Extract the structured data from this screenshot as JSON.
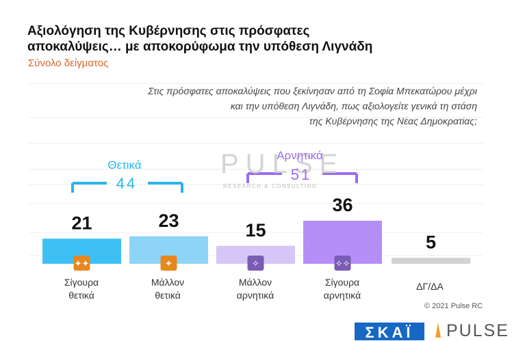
{
  "title": "Αξιολόγηση της Κυβέρνησης στις πρόσφατες\nαποκαλύψεις… με αποκορύφωμα την υπόθεση Λιγνάδη",
  "subtitle": "Σύνολο δείγματος",
  "question": "Στις πρόσφατες αποκαλύψεις που ξεκίνησαν από τη Σοφία Μπεκατώρου μέχρι\nκαι την υπόθεση Λιγνάδη, πως αξιολογείτε γενικά τη στάση\nτης Κυβέρνησης της Νέας Δημοκρατίας;",
  "watermark": {
    "main": "PULSE",
    "sub": "RESEARCH & CONSULTING"
  },
  "groups": {
    "positive": {
      "label": "Θετικά",
      "total": "44",
      "color": "#29b5e8"
    },
    "negative": {
      "label": "Αρνητικά",
      "total": "51",
      "color": "#9b6bf0"
    }
  },
  "copyright": "© 2021 Pulse RC",
  "logos": {
    "skai": "ΣΚΑΪ",
    "pulse": "PULSE"
  },
  "colors": {
    "orange": "#d9642b",
    "icon": "#e8871e"
  },
  "chart_data": {
    "type": "bar",
    "categories": [
      "Σίγουρα\nθετικά",
      "Μάλλον\nθετικά",
      "Μάλλον\nαρνητικά",
      "Σίγουρα\nαρνητικά",
      "ΔΓ/ΔΑ"
    ],
    "values": [
      21,
      23,
      15,
      36,
      5
    ],
    "colors": [
      "#3ec0f5",
      "#8dd4f7",
      "#d6c6f7",
      "#b48ff7",
      "#d2d2d2"
    ],
    "icons": [
      "double-thumbs-up-icon",
      "thumbs-up-icon",
      "thumbs-down-icon",
      "double-thumbs-down-icon",
      ""
    ],
    "ylim": [
      0,
      40
    ],
    "grid": true,
    "legend": "none"
  }
}
